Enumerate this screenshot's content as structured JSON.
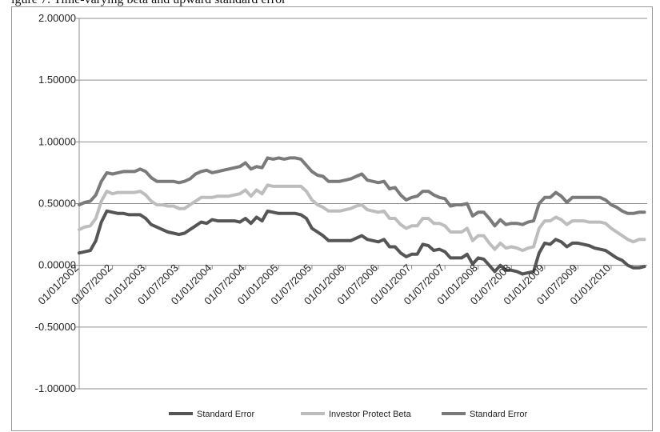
{
  "caption": "igure 7: Time-varying beta and upward standard error",
  "chart_data": {
    "type": "line",
    "ylim": [
      -1.0,
      2.0
    ],
    "yticks": [
      -1.0,
      -0.5,
      0.0,
      0.5,
      1.0,
      1.5,
      2.0
    ],
    "ytick_labels": [
      "-1.00000",
      "-0.50000",
      "0.00000",
      "0.50000",
      "1.00000",
      "1.50000",
      "2.00000"
    ],
    "x_months": [
      0,
      6,
      12,
      18,
      24,
      30,
      36,
      42,
      48,
      54,
      60,
      66,
      72,
      78,
      84,
      90,
      96
    ],
    "xtick_labels": [
      "01/01/2002",
      "01/07/2002",
      "01/01/2003",
      "01/07/2003",
      "01/01/2004",
      "01/07/2004",
      "01/01/2005",
      "01/07/2005",
      "01/01/2006",
      "01/07/2006",
      "01/01/2007",
      "01/07/2007",
      "01/01/2008",
      "01/07/2008",
      "01/01/2009",
      "01/07/2009",
      "01/01/2010"
    ],
    "grid": true,
    "legend_position": "bottom",
    "series": [
      {
        "name": "Standard Error",
        "color": "#555555",
        "points": [
          [
            0,
            0.1
          ],
          [
            1,
            0.11
          ],
          [
            2,
            0.12
          ],
          [
            3,
            0.2
          ],
          [
            4,
            0.35
          ],
          [
            5,
            0.44
          ],
          [
            6,
            0.43
          ],
          [
            7,
            0.42
          ],
          [
            8,
            0.42
          ],
          [
            9,
            0.41
          ],
          [
            10,
            0.41
          ],
          [
            11,
            0.41
          ],
          [
            12,
            0.38
          ],
          [
            13,
            0.33
          ],
          [
            14,
            0.31
          ],
          [
            15,
            0.29
          ],
          [
            16,
            0.27
          ],
          [
            17,
            0.26
          ],
          [
            18,
            0.25
          ],
          [
            19,
            0.26
          ],
          [
            20,
            0.29
          ],
          [
            21,
            0.32
          ],
          [
            22,
            0.35
          ],
          [
            23,
            0.34
          ],
          [
            24,
            0.37
          ],
          [
            25,
            0.36
          ],
          [
            26,
            0.36
          ],
          [
            27,
            0.36
          ],
          [
            28,
            0.36
          ],
          [
            29,
            0.35
          ],
          [
            30,
            0.38
          ],
          [
            31,
            0.34
          ],
          [
            32,
            0.39
          ],
          [
            33,
            0.36
          ],
          [
            34,
            0.44
          ],
          [
            35,
            0.43
          ],
          [
            36,
            0.42
          ],
          [
            37,
            0.42
          ],
          [
            38,
            0.42
          ],
          [
            39,
            0.42
          ],
          [
            40,
            0.41
          ],
          [
            41,
            0.38
          ],
          [
            42,
            0.3
          ],
          [
            43,
            0.27
          ],
          [
            44,
            0.24
          ],
          [
            45,
            0.2
          ],
          [
            46,
            0.2
          ],
          [
            47,
            0.2
          ],
          [
            48,
            0.2
          ],
          [
            49,
            0.2
          ],
          [
            50,
            0.22
          ],
          [
            51,
            0.24
          ],
          [
            52,
            0.21
          ],
          [
            53,
            0.2
          ],
          [
            54,
            0.19
          ],
          [
            55,
            0.21
          ],
          [
            56,
            0.15
          ],
          [
            57,
            0.15
          ],
          [
            58,
            0.1
          ],
          [
            59,
            0.07
          ],
          [
            60,
            0.09
          ],
          [
            61,
            0.09
          ],
          [
            62,
            0.17
          ],
          [
            63,
            0.16
          ],
          [
            64,
            0.12
          ],
          [
            65,
            0.13
          ],
          [
            66,
            0.11
          ],
          [
            67,
            0.06
          ],
          [
            68,
            0.06
          ],
          [
            69,
            0.06
          ],
          [
            70,
            0.09
          ],
          [
            71,
            0.01
          ],
          [
            72,
            0.06
          ],
          [
            73,
            0.05
          ],
          [
            74,
            0.0
          ],
          [
            75,
            -0.05
          ],
          [
            76,
            0.0
          ],
          [
            77,
            -0.04
          ],
          [
            78,
            -0.04
          ],
          [
            79,
            -0.05
          ],
          [
            80,
            -0.07
          ],
          [
            81,
            -0.06
          ],
          [
            82,
            -0.05
          ],
          [
            83,
            0.1
          ],
          [
            84,
            0.18
          ],
          [
            85,
            0.17
          ],
          [
            86,
            0.21
          ],
          [
            87,
            0.19
          ],
          [
            88,
            0.15
          ],
          [
            89,
            0.18
          ],
          [
            90,
            0.18
          ],
          [
            91,
            0.17
          ],
          [
            92,
            0.16
          ],
          [
            93,
            0.14
          ],
          [
            94,
            0.13
          ],
          [
            95,
            0.12
          ],
          [
            96,
            0.09
          ],
          [
            97,
            0.06
          ],
          [
            98,
            0.04
          ],
          [
            99,
            0.0
          ],
          [
            100,
            -0.02
          ],
          [
            101,
            -0.02
          ],
          [
            102,
            -0.01
          ]
        ]
      },
      {
        "name": "Investor Protect Beta",
        "color": "#bdbdbd",
        "points": [
          [
            0,
            0.29
          ],
          [
            1,
            0.31
          ],
          [
            2,
            0.32
          ],
          [
            3,
            0.38
          ],
          [
            4,
            0.52
          ],
          [
            5,
            0.6
          ],
          [
            6,
            0.58
          ],
          [
            7,
            0.59
          ],
          [
            8,
            0.59
          ],
          [
            9,
            0.59
          ],
          [
            10,
            0.59
          ],
          [
            11,
            0.6
          ],
          [
            12,
            0.57
          ],
          [
            13,
            0.52
          ],
          [
            14,
            0.49
          ],
          [
            15,
            0.49
          ],
          [
            16,
            0.48
          ],
          [
            17,
            0.48
          ],
          [
            18,
            0.46
          ],
          [
            19,
            0.46
          ],
          [
            20,
            0.49
          ],
          [
            21,
            0.52
          ],
          [
            22,
            0.55
          ],
          [
            23,
            0.55
          ],
          [
            24,
            0.55
          ],
          [
            25,
            0.56
          ],
          [
            26,
            0.56
          ],
          [
            27,
            0.56
          ],
          [
            28,
            0.57
          ],
          [
            29,
            0.58
          ],
          [
            30,
            0.61
          ],
          [
            31,
            0.56
          ],
          [
            32,
            0.61
          ],
          [
            33,
            0.58
          ],
          [
            34,
            0.65
          ],
          [
            35,
            0.64
          ],
          [
            36,
            0.64
          ],
          [
            37,
            0.64
          ],
          [
            38,
            0.64
          ],
          [
            39,
            0.64
          ],
          [
            40,
            0.64
          ],
          [
            41,
            0.6
          ],
          [
            42,
            0.53
          ],
          [
            43,
            0.49
          ],
          [
            44,
            0.47
          ],
          [
            45,
            0.44
          ],
          [
            46,
            0.44
          ],
          [
            47,
            0.44
          ],
          [
            48,
            0.45
          ],
          [
            49,
            0.46
          ],
          [
            50,
            0.48
          ],
          [
            51,
            0.49
          ],
          [
            52,
            0.45
          ],
          [
            53,
            0.44
          ],
          [
            54,
            0.43
          ],
          [
            55,
            0.44
          ],
          [
            56,
            0.38
          ],
          [
            57,
            0.38
          ],
          [
            58,
            0.33
          ],
          [
            59,
            0.3
          ],
          [
            60,
            0.32
          ],
          [
            61,
            0.32
          ],
          [
            62,
            0.38
          ],
          [
            63,
            0.38
          ],
          [
            64,
            0.34
          ],
          [
            65,
            0.34
          ],
          [
            66,
            0.32
          ],
          [
            67,
            0.27
          ],
          [
            68,
            0.27
          ],
          [
            69,
            0.27
          ],
          [
            70,
            0.3
          ],
          [
            71,
            0.2
          ],
          [
            72,
            0.24
          ],
          [
            73,
            0.24
          ],
          [
            74,
            0.18
          ],
          [
            75,
            0.13
          ],
          [
            76,
            0.18
          ],
          [
            77,
            0.14
          ],
          [
            78,
            0.15
          ],
          [
            79,
            0.14
          ],
          [
            80,
            0.12
          ],
          [
            81,
            0.14
          ],
          [
            82,
            0.15
          ],
          [
            83,
            0.3
          ],
          [
            84,
            0.36
          ],
          [
            85,
            0.36
          ],
          [
            86,
            0.39
          ],
          [
            87,
            0.37
          ],
          [
            88,
            0.33
          ],
          [
            89,
            0.36
          ],
          [
            90,
            0.36
          ],
          [
            91,
            0.36
          ],
          [
            92,
            0.35
          ],
          [
            93,
            0.35
          ],
          [
            94,
            0.35
          ],
          [
            95,
            0.34
          ],
          [
            96,
            0.3
          ],
          [
            97,
            0.27
          ],
          [
            98,
            0.24
          ],
          [
            99,
            0.21
          ],
          [
            100,
            0.19
          ],
          [
            101,
            0.21
          ],
          [
            102,
            0.21
          ]
        ]
      },
      {
        "name": "Standard Error",
        "color": "#7a7a7a",
        "points": [
          [
            0,
            0.49
          ],
          [
            1,
            0.51
          ],
          [
            2,
            0.52
          ],
          [
            3,
            0.57
          ],
          [
            4,
            0.68
          ],
          [
            5,
            0.75
          ],
          [
            6,
            0.74
          ],
          [
            7,
            0.75
          ],
          [
            8,
            0.76
          ],
          [
            9,
            0.76
          ],
          [
            10,
            0.76
          ],
          [
            11,
            0.78
          ],
          [
            12,
            0.76
          ],
          [
            13,
            0.71
          ],
          [
            14,
            0.68
          ],
          [
            15,
            0.68
          ],
          [
            16,
            0.68
          ],
          [
            17,
            0.68
          ],
          [
            18,
            0.67
          ],
          [
            19,
            0.68
          ],
          [
            20,
            0.7
          ],
          [
            21,
            0.74
          ],
          [
            22,
            0.76
          ],
          [
            23,
            0.77
          ],
          [
            24,
            0.75
          ],
          [
            25,
            0.76
          ],
          [
            26,
            0.77
          ],
          [
            27,
            0.78
          ],
          [
            28,
            0.79
          ],
          [
            29,
            0.8
          ],
          [
            30,
            0.83
          ],
          [
            31,
            0.78
          ],
          [
            32,
            0.8
          ],
          [
            33,
            0.79
          ],
          [
            34,
            0.87
          ],
          [
            35,
            0.86
          ],
          [
            36,
            0.87
          ],
          [
            37,
            0.86
          ],
          [
            38,
            0.87
          ],
          [
            39,
            0.87
          ],
          [
            40,
            0.86
          ],
          [
            41,
            0.81
          ],
          [
            42,
            0.76
          ],
          [
            43,
            0.73
          ],
          [
            44,
            0.72
          ],
          [
            45,
            0.68
          ],
          [
            46,
            0.68
          ],
          [
            47,
            0.68
          ],
          [
            48,
            0.69
          ],
          [
            49,
            0.7
          ],
          [
            50,
            0.72
          ],
          [
            51,
            0.74
          ],
          [
            52,
            0.69
          ],
          [
            53,
            0.68
          ],
          [
            54,
            0.67
          ],
          [
            55,
            0.68
          ],
          [
            56,
            0.62
          ],
          [
            57,
            0.63
          ],
          [
            58,
            0.57
          ],
          [
            59,
            0.53
          ],
          [
            60,
            0.55
          ],
          [
            61,
            0.56
          ],
          [
            62,
            0.6
          ],
          [
            63,
            0.6
          ],
          [
            64,
            0.57
          ],
          [
            65,
            0.55
          ],
          [
            66,
            0.54
          ],
          [
            67,
            0.48
          ],
          [
            68,
            0.49
          ],
          [
            69,
            0.49
          ],
          [
            70,
            0.5
          ],
          [
            71,
            0.4
          ],
          [
            72,
            0.43
          ],
          [
            73,
            0.43
          ],
          [
            74,
            0.38
          ],
          [
            75,
            0.32
          ],
          [
            76,
            0.37
          ],
          [
            77,
            0.33
          ],
          [
            78,
            0.34
          ],
          [
            79,
            0.34
          ],
          [
            80,
            0.33
          ],
          [
            81,
            0.35
          ],
          [
            82,
            0.36
          ],
          [
            83,
            0.5
          ],
          [
            84,
            0.55
          ],
          [
            85,
            0.55
          ],
          [
            86,
            0.59
          ],
          [
            87,
            0.56
          ],
          [
            88,
            0.51
          ],
          [
            89,
            0.55
          ],
          [
            90,
            0.55
          ],
          [
            91,
            0.55
          ],
          [
            92,
            0.55
          ],
          [
            93,
            0.55
          ],
          [
            94,
            0.55
          ],
          [
            95,
            0.53
          ],
          [
            96,
            0.49
          ],
          [
            97,
            0.47
          ],
          [
            98,
            0.44
          ],
          [
            99,
            0.42
          ],
          [
            100,
            0.42
          ],
          [
            101,
            0.43
          ],
          [
            102,
            0.43
          ]
        ]
      }
    ]
  }
}
